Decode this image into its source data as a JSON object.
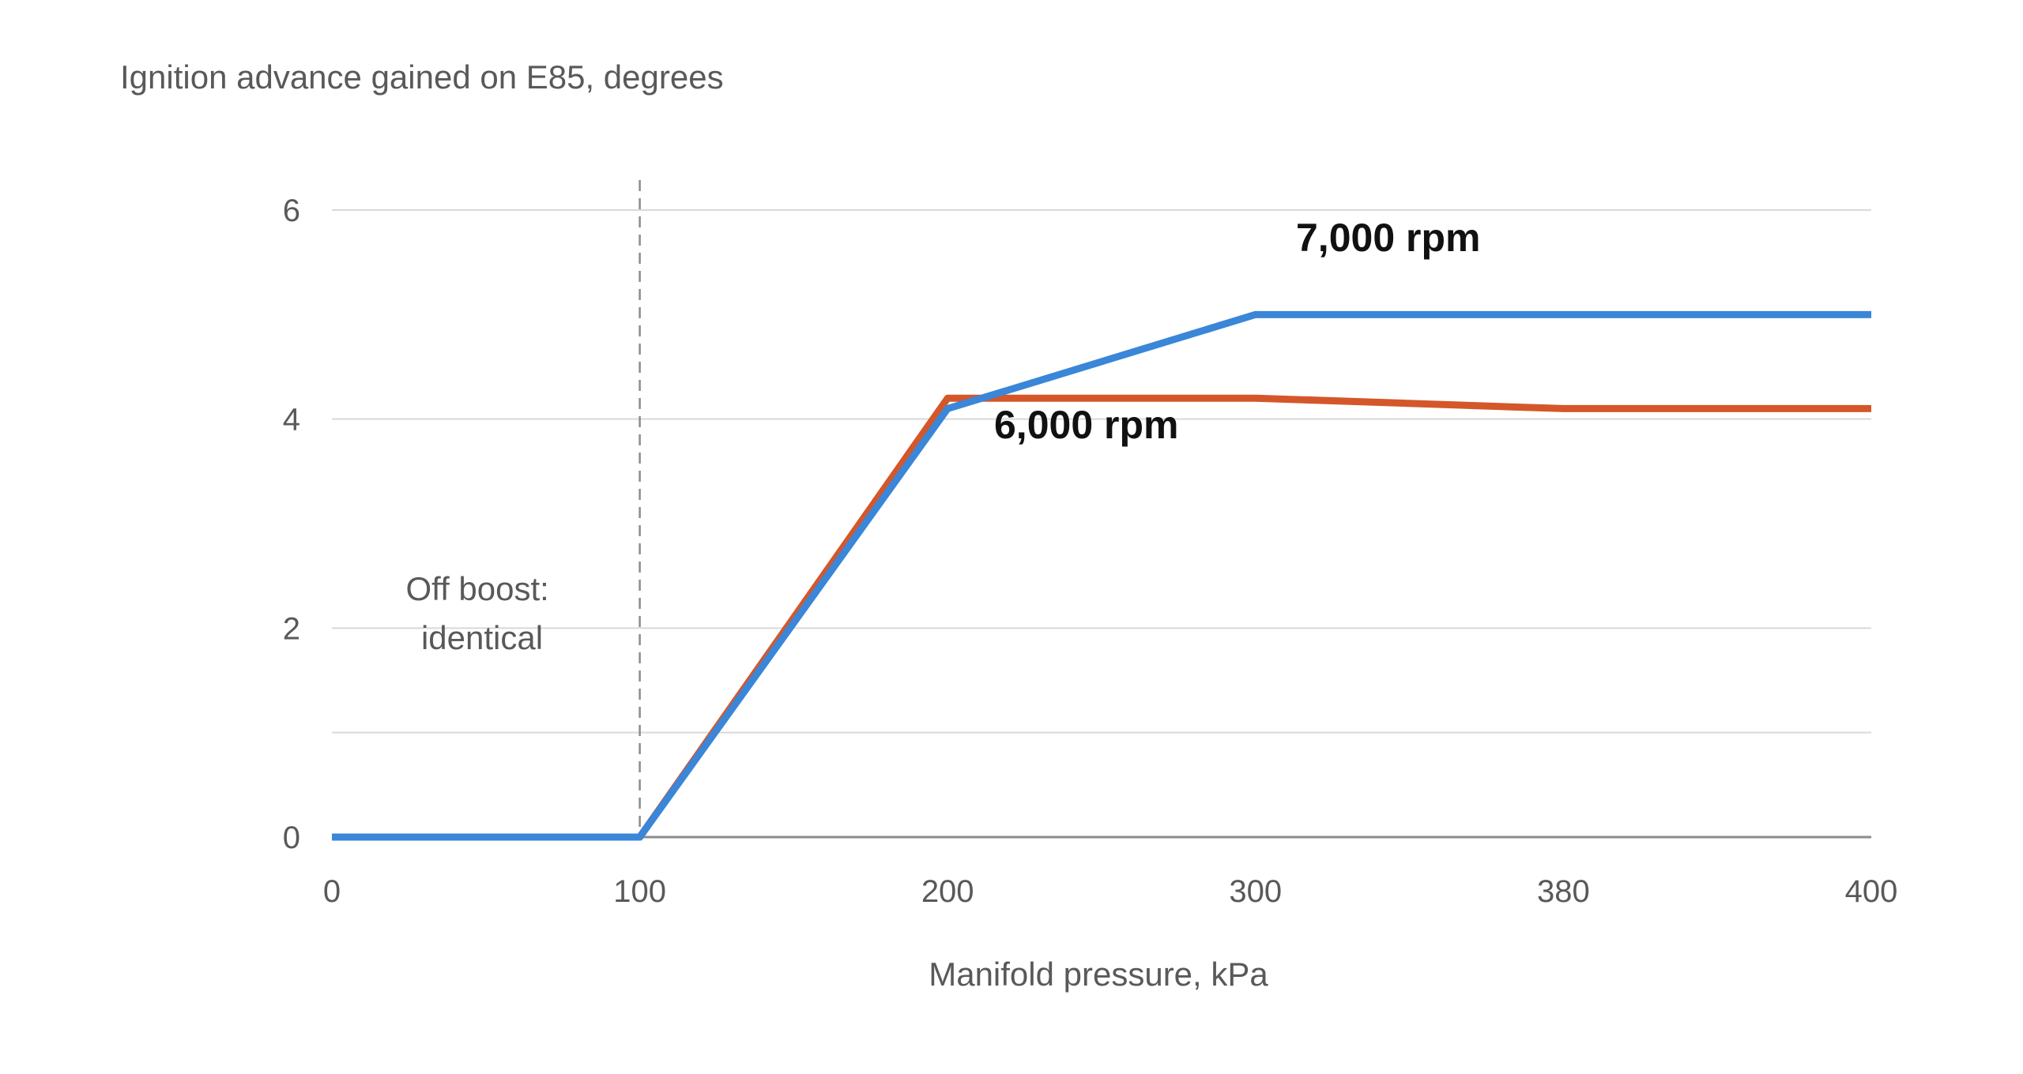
{
  "chart_data": {
    "type": "line",
    "title": "Ignition advance gained on E85, degrees",
    "xlabel": "Manifold pressure, kPa",
    "ylabel": "",
    "x_ticks": [
      "0",
      "100",
      "200",
      "300",
      "380",
      "400"
    ],
    "y_ticks": [
      "0",
      "2",
      "4",
      "6"
    ],
    "ylim": [
      0,
      6
    ],
    "grid": true,
    "legend": "none (direct series labels)",
    "x": [
      0,
      100,
      200,
      300,
      380,
      400
    ],
    "series": [
      {
        "name": "6,000 rpm",
        "color": "#d4572a",
        "values": [
          0,
          0,
          4.2,
          4.2,
          4.1,
          4.1
        ]
      },
      {
        "name": "7,000 rpm",
        "color": "#3a86d8",
        "values": [
          0,
          0,
          4.1,
          5.0,
          5.0,
          5.0
        ]
      }
    ],
    "annotations": [
      {
        "text_line1": "Off boost:",
        "text_line2": "identical",
        "reference_x": "100"
      }
    ]
  }
}
